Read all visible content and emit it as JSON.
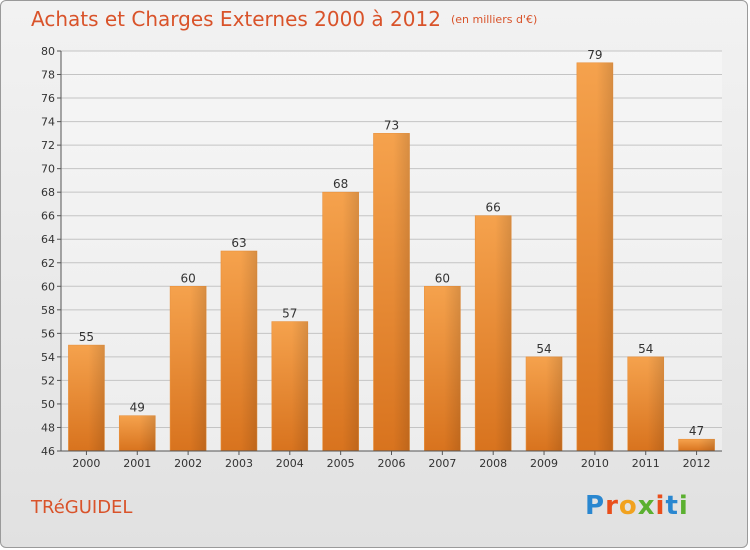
{
  "header": {
    "title": "Achats et Charges Externes 2000 à 2012",
    "subtitle": "(en milliers d'€)"
  },
  "footer": {
    "commune": "TRéGUIDEL",
    "logo": {
      "letters": [
        "P",
        "r",
        "o",
        "x",
        "i",
        "t",
        "i"
      ],
      "colors": [
        "#2a87d0",
        "#e94e1b",
        "#f1a21f",
        "#5bb030",
        "#e94e1b",
        "#2a87d0",
        "#5bb030"
      ]
    }
  },
  "chart_data": {
    "type": "bar",
    "title": "Achats et Charges Externes 2000 à 2012",
    "subtitle": "(en milliers d'€)",
    "categories": [
      "2000",
      "2001",
      "2002",
      "2003",
      "2004",
      "2005",
      "2006",
      "2007",
      "2008",
      "2009",
      "2010",
      "2011",
      "2012"
    ],
    "values": [
      55,
      49,
      60,
      63,
      57,
      68,
      73,
      60,
      66,
      54,
      79,
      54,
      47
    ],
    "ylim": [
      46,
      80
    ],
    "yticks": [
      46,
      48,
      50,
      52,
      54,
      56,
      58,
      60,
      62,
      64,
      66,
      68,
      70,
      72,
      74,
      76,
      78,
      80
    ],
    "grid": true,
    "bar_color": "#f08a2c"
  }
}
